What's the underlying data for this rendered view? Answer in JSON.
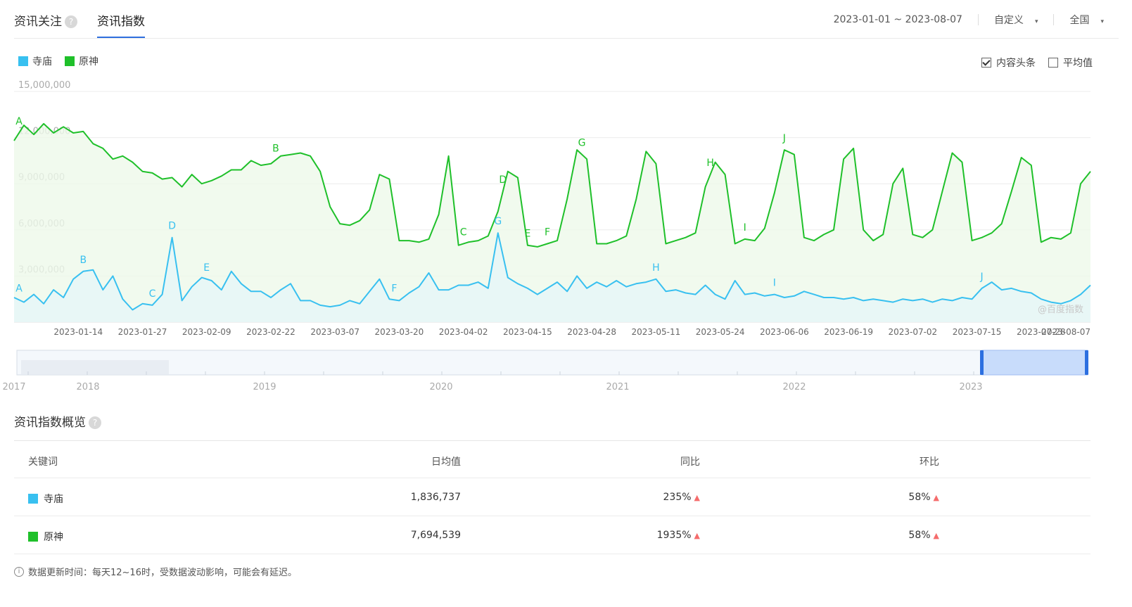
{
  "tabs": {
    "follow": "资讯关注",
    "index": "资讯指数",
    "help": "?"
  },
  "controls": {
    "date_range": "2023-01-01 ~ 2023-08-07",
    "mode": "自定义",
    "region": "全国",
    "caret": "▾"
  },
  "legend": [
    {
      "name": "寺庙",
      "color": "#38c0f0"
    },
    {
      "name": "原神",
      "color": "#1fc02a"
    }
  ],
  "checks": [
    {
      "label": "内容头条",
      "checked": true
    },
    {
      "label": "平均值",
      "checked": false
    }
  ],
  "watermark": "@百度指数",
  "chart_data": {
    "type": "line",
    "ylim": [
      0,
      15000000
    ],
    "yticks": [
      "15,000,000",
      "12,000,000",
      "9,000,000",
      "6,000,000",
      "3,000,000"
    ],
    "yticks_values": [
      15000000,
      12000000,
      9000000,
      6000000,
      3000000
    ],
    "xtick_labels": [
      "2023-01-14",
      "2023-01-27",
      "2023-02-09",
      "2023-02-22",
      "2023-03-07",
      "2023-03-20",
      "2023-04-02",
      "2023-04-15",
      "2023-04-28",
      "2023-05-11",
      "2023-05-24",
      "2023-06-06",
      "2023-06-19",
      "2023-07-02",
      "2023-07-15",
      "2023-07-28",
      "2023-08-07"
    ],
    "xtick_days": [
      13,
      26,
      39,
      52,
      65,
      78,
      91,
      104,
      117,
      130,
      143,
      156,
      169,
      182,
      195,
      208,
      218
    ],
    "x_start": "2023-01-01",
    "x_end": "2023-08-07",
    "series": [
      {
        "name": "原神",
        "color": "#1fc02a",
        "points": [
          [
            0,
            11800000
          ],
          [
            2,
            12800000
          ],
          [
            4,
            12200000
          ],
          [
            6,
            12900000
          ],
          [
            8,
            12300000
          ],
          [
            10,
            12700000
          ],
          [
            12,
            12300000
          ],
          [
            14,
            12400000
          ],
          [
            16,
            11600000
          ],
          [
            18,
            11300000
          ],
          [
            20,
            10600000
          ],
          [
            22,
            10800000
          ],
          [
            24,
            10400000
          ],
          [
            26,
            9800000
          ],
          [
            28,
            9700000
          ],
          [
            30,
            9300000
          ],
          [
            32,
            9400000
          ],
          [
            34,
            8800000
          ],
          [
            36,
            9600000
          ],
          [
            38,
            9000000
          ],
          [
            40,
            9200000
          ],
          [
            42,
            9500000
          ],
          [
            44,
            9900000
          ],
          [
            46,
            9900000
          ],
          [
            48,
            10500000
          ],
          [
            50,
            10200000
          ],
          [
            52,
            10300000
          ],
          [
            54,
            10800000
          ],
          [
            56,
            10900000
          ],
          [
            58,
            11000000
          ],
          [
            60,
            10800000
          ],
          [
            62,
            9800000
          ],
          [
            64,
            7500000
          ],
          [
            66,
            6400000
          ],
          [
            68,
            6300000
          ],
          [
            70,
            6600000
          ],
          [
            72,
            7300000
          ],
          [
            74,
            9600000
          ],
          [
            76,
            9300000
          ],
          [
            78,
            5300000
          ],
          [
            80,
            5300000
          ],
          [
            82,
            5200000
          ],
          [
            84,
            5400000
          ],
          [
            86,
            7000000
          ],
          [
            88,
            10800000
          ],
          [
            90,
            5000000
          ],
          [
            92,
            5200000
          ],
          [
            94,
            5300000
          ],
          [
            96,
            5600000
          ],
          [
            98,
            7200000
          ],
          [
            100,
            9800000
          ],
          [
            102,
            9400000
          ],
          [
            104,
            5000000
          ],
          [
            106,
            4900000
          ],
          [
            108,
            5100000
          ],
          [
            110,
            5300000
          ],
          [
            112,
            8000000
          ],
          [
            114,
            11200000
          ],
          [
            116,
            10600000
          ],
          [
            118,
            5100000
          ],
          [
            120,
            5100000
          ],
          [
            122,
            5300000
          ],
          [
            124,
            5600000
          ],
          [
            126,
            8000000
          ],
          [
            128,
            11100000
          ],
          [
            130,
            10300000
          ],
          [
            132,
            5100000
          ],
          [
            134,
            5300000
          ],
          [
            136,
            5500000
          ],
          [
            138,
            5800000
          ],
          [
            140,
            8800000
          ],
          [
            142,
            10400000
          ],
          [
            144,
            9600000
          ],
          [
            146,
            5100000
          ],
          [
            148,
            5400000
          ],
          [
            150,
            5300000
          ],
          [
            152,
            6100000
          ],
          [
            154,
            8400000
          ],
          [
            156,
            11200000
          ],
          [
            158,
            10900000
          ],
          [
            160,
            5500000
          ],
          [
            162,
            5300000
          ],
          [
            164,
            5700000
          ],
          [
            166,
            6000000
          ],
          [
            168,
            10600000
          ],
          [
            170,
            11300000
          ],
          [
            172,
            6000000
          ],
          [
            174,
            5300000
          ],
          [
            176,
            5700000
          ],
          [
            178,
            9000000
          ],
          [
            180,
            10000000
          ],
          [
            182,
            5700000
          ],
          [
            184,
            5500000
          ],
          [
            186,
            6000000
          ],
          [
            188,
            8500000
          ],
          [
            190,
            11000000
          ],
          [
            192,
            10400000
          ],
          [
            194,
            5300000
          ],
          [
            196,
            5500000
          ],
          [
            198,
            5800000
          ],
          [
            200,
            6400000
          ],
          [
            202,
            8500000
          ],
          [
            204,
            10700000
          ],
          [
            206,
            10200000
          ],
          [
            208,
            5200000
          ],
          [
            210,
            5500000
          ],
          [
            212,
            5400000
          ],
          [
            214,
            5800000
          ],
          [
            216,
            9000000
          ],
          [
            218,
            9800000
          ]
        ]
      },
      {
        "name": "寺庙",
        "color": "#38c0f0",
        "points": [
          [
            0,
            1600000
          ],
          [
            2,
            1300000
          ],
          [
            4,
            1800000
          ],
          [
            6,
            1200000
          ],
          [
            8,
            2100000
          ],
          [
            10,
            1600000
          ],
          [
            12,
            2800000
          ],
          [
            14,
            3300000
          ],
          [
            16,
            3400000
          ],
          [
            18,
            2100000
          ],
          [
            20,
            3000000
          ],
          [
            22,
            1500000
          ],
          [
            24,
            800000
          ],
          [
            26,
            1200000
          ],
          [
            28,
            1100000
          ],
          [
            30,
            1800000
          ],
          [
            32,
            5500000
          ],
          [
            34,
            1400000
          ],
          [
            36,
            2300000
          ],
          [
            38,
            2900000
          ],
          [
            40,
            2700000
          ],
          [
            42,
            2100000
          ],
          [
            44,
            3300000
          ],
          [
            46,
            2500000
          ],
          [
            48,
            2000000
          ],
          [
            50,
            2000000
          ],
          [
            52,
            1600000
          ],
          [
            54,
            2100000
          ],
          [
            56,
            2500000
          ],
          [
            58,
            1400000
          ],
          [
            60,
            1400000
          ],
          [
            62,
            1100000
          ],
          [
            64,
            1000000
          ],
          [
            66,
            1100000
          ],
          [
            68,
            1400000
          ],
          [
            70,
            1200000
          ],
          [
            72,
            2000000
          ],
          [
            74,
            2800000
          ],
          [
            76,
            1500000
          ],
          [
            78,
            1400000
          ],
          [
            80,
            1900000
          ],
          [
            82,
            2300000
          ],
          [
            84,
            3200000
          ],
          [
            86,
            2100000
          ],
          [
            88,
            2100000
          ],
          [
            90,
            2400000
          ],
          [
            92,
            2400000
          ],
          [
            94,
            2600000
          ],
          [
            96,
            2200000
          ],
          [
            98,
            5800000
          ],
          [
            100,
            2900000
          ],
          [
            102,
            2500000
          ],
          [
            104,
            2200000
          ],
          [
            106,
            1800000
          ],
          [
            108,
            2200000
          ],
          [
            110,
            2600000
          ],
          [
            112,
            2000000
          ],
          [
            114,
            3000000
          ],
          [
            116,
            2200000
          ],
          [
            118,
            2600000
          ],
          [
            120,
            2300000
          ],
          [
            122,
            2700000
          ],
          [
            124,
            2300000
          ],
          [
            126,
            2500000
          ],
          [
            128,
            2600000
          ],
          [
            130,
            2800000
          ],
          [
            132,
            2000000
          ],
          [
            134,
            2100000
          ],
          [
            136,
            1900000
          ],
          [
            138,
            1800000
          ],
          [
            140,
            2400000
          ],
          [
            142,
            1800000
          ],
          [
            144,
            1500000
          ],
          [
            146,
            2700000
          ],
          [
            148,
            1800000
          ],
          [
            150,
            1900000
          ],
          [
            152,
            1700000
          ],
          [
            154,
            1800000
          ],
          [
            156,
            1600000
          ],
          [
            158,
            1700000
          ],
          [
            160,
            2000000
          ],
          [
            162,
            1800000
          ],
          [
            164,
            1600000
          ],
          [
            166,
            1600000
          ],
          [
            168,
            1500000
          ],
          [
            170,
            1600000
          ],
          [
            172,
            1400000
          ],
          [
            174,
            1500000
          ],
          [
            176,
            1400000
          ],
          [
            178,
            1300000
          ],
          [
            180,
            1500000
          ],
          [
            182,
            1400000
          ],
          [
            184,
            1500000
          ],
          [
            186,
            1300000
          ],
          [
            188,
            1500000
          ],
          [
            190,
            1400000
          ],
          [
            192,
            1600000
          ],
          [
            194,
            1500000
          ],
          [
            196,
            2200000
          ],
          [
            198,
            2600000
          ],
          [
            200,
            2100000
          ],
          [
            202,
            2200000
          ],
          [
            204,
            2000000
          ],
          [
            206,
            1900000
          ],
          [
            208,
            1500000
          ],
          [
            210,
            1300000
          ],
          [
            212,
            1200000
          ],
          [
            214,
            1400000
          ],
          [
            216,
            1800000
          ],
          [
            218,
            2400000
          ]
        ]
      }
    ],
    "annotations": [
      {
        "series": "原神",
        "label": "A",
        "x": 1
      },
      {
        "series": "原神",
        "label": "B",
        "x": 53
      },
      {
        "series": "原神",
        "label": "C",
        "x": 91
      },
      {
        "series": "原神",
        "label": "D",
        "x": 99
      },
      {
        "series": "原神",
        "label": "E",
        "x": 104
      },
      {
        "series": "原神",
        "label": "F",
        "x": 108
      },
      {
        "series": "原神",
        "label": "G",
        "x": 115
      },
      {
        "series": "原神",
        "label": "H",
        "x": 141
      },
      {
        "series": "原神",
        "label": "I",
        "x": 148
      },
      {
        "series": "原神",
        "label": "J",
        "x": 156
      },
      {
        "series": "寺庙",
        "label": "A",
        "x": 1
      },
      {
        "series": "寺庙",
        "label": "B",
        "x": 14
      },
      {
        "series": "寺庙",
        "label": "C",
        "x": 28
      },
      {
        "series": "寺庙",
        "label": "D",
        "x": 32
      },
      {
        "series": "寺庙",
        "label": "E",
        "x": 39
      },
      {
        "series": "寺庙",
        "label": "F",
        "x": 77
      },
      {
        "series": "寺庙",
        "label": "G",
        "x": 98
      },
      {
        "series": "寺庙",
        "label": "H",
        "x": 130
      },
      {
        "series": "寺庙",
        "label": "I",
        "x": 154
      },
      {
        "series": "寺庙",
        "label": "J",
        "x": 196
      }
    ],
    "navigator": {
      "years": [
        "2017",
        "2018",
        "2019",
        "2020",
        "2021",
        "2022",
        "2023"
      ],
      "selected_range": [
        "2023-01-01",
        "2023-08-07"
      ]
    }
  },
  "overview": {
    "title": "资讯指数概览",
    "headers": {
      "keyword": "关键词",
      "daily_avg": "日均值",
      "yoy": "同比",
      "mom": "环比"
    },
    "rows": [
      {
        "keyword": "寺庙",
        "color": "#38c0f0",
        "daily_avg": "1,836,737",
        "yoy": "235%",
        "mom": "58%"
      },
      {
        "keyword": "原神",
        "color": "#1fc02a",
        "daily_avg": "7,694,539",
        "yoy": "1935%",
        "mom": "58%"
      }
    ],
    "up_arrow": "▲"
  },
  "footnote": {
    "icon": "i",
    "text": "数据更新时间：每天12~16时，受数据波动影响，可能会有延迟。"
  }
}
